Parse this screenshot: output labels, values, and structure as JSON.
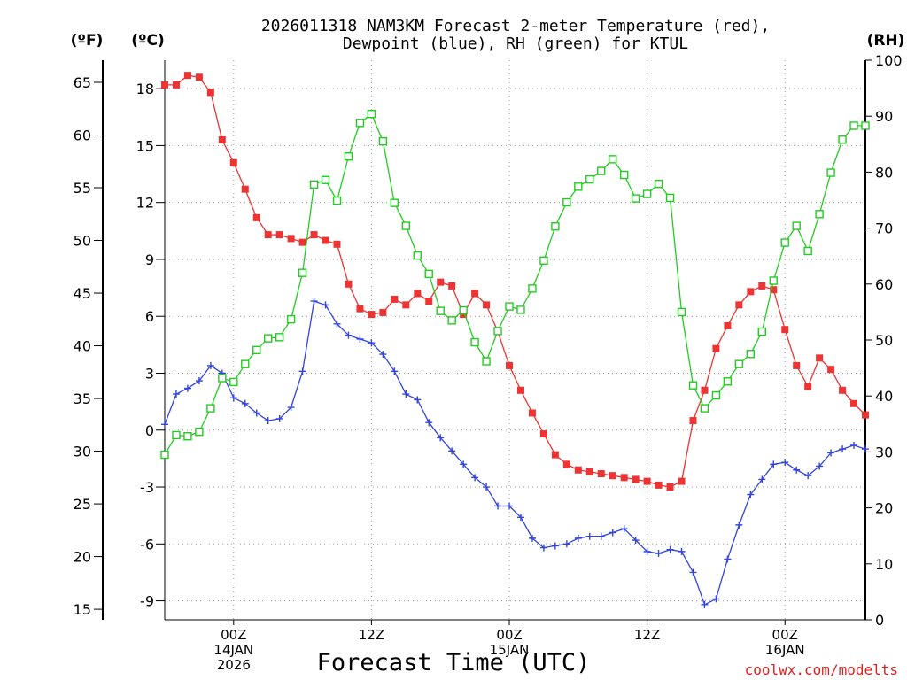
{
  "chart_data": {
    "type": "line",
    "title": [
      "2026011318 NAM3KM Forecast 2-meter Temperature (red),",
      "Dewpoint (blue), RH (green) for KTUL"
    ],
    "xlabel": "Forecast Time (UTC)",
    "credit": "coolwx.com/modelts",
    "units": {
      "fahrenheit": "(ºF)",
      "celsius": "(ºC)",
      "rh": "(RH)"
    },
    "x_range_hours": [
      0,
      61
    ],
    "x_ticks": [
      {
        "hour": 6,
        "lines": [
          "00Z",
          "14JAN",
          "2026"
        ]
      },
      {
        "hour": 18,
        "lines": [
          "12Z"
        ]
      },
      {
        "hour": 30,
        "lines": [
          "00Z",
          "15JAN"
        ]
      },
      {
        "hour": 42,
        "lines": [
          "12Z"
        ]
      },
      {
        "hour": 54,
        "lines": [
          "00Z",
          "16JAN"
        ]
      }
    ],
    "y_celsius": {
      "range": [
        -10.0,
        19.5
      ],
      "ticks": [
        18,
        15,
        12,
        9,
        6,
        3,
        0,
        -3,
        -6,
        -9
      ]
    },
    "y_fahrenheit": {
      "ticks": [
        65,
        60,
        55,
        50,
        45,
        40,
        35,
        30,
        25,
        20,
        15
      ]
    },
    "y_rh": {
      "range": [
        0,
        100
      ],
      "ticks": [
        100,
        90,
        80,
        70,
        60,
        50,
        40,
        30,
        20,
        10,
        0
      ]
    },
    "series": [
      {
        "name": "2-meter Temperature",
        "axis": "celsius",
        "color": "#ee3333",
        "marker": "filled-square",
        "x": [
          0,
          1,
          2,
          3,
          4,
          5,
          6,
          7,
          8,
          9,
          10,
          11,
          12,
          13,
          14,
          15,
          16,
          17,
          18,
          19,
          20,
          21,
          22,
          23,
          24,
          25,
          26,
          27,
          28,
          29,
          30,
          31,
          32,
          33,
          34,
          35,
          36,
          37,
          38,
          39,
          40,
          41,
          42,
          43,
          44,
          45,
          46,
          47,
          48,
          49,
          50,
          51,
          52,
          53,
          54,
          55,
          56,
          57,
          58,
          59,
          60,
          61
        ],
        "values": [
          18.2,
          18.2,
          18.7,
          18.6,
          17.8,
          15.3,
          14.1,
          12.7,
          11.2,
          10.3,
          10.3,
          10.1,
          9.9,
          10.3,
          10.0,
          9.8,
          7.7,
          6.4,
          6.1,
          6.2,
          6.9,
          6.6,
          7.2,
          6.8,
          7.8,
          7.6,
          6.1,
          7.2,
          6.6,
          5.2,
          3.4,
          2.1,
          0.9,
          -0.2,
          -1.3,
          -1.8,
          -2.1,
          -2.2,
          -2.3,
          -2.4,
          -2.5,
          -2.6,
          -2.7,
          -2.9,
          -3.0,
          -2.7,
          0.5,
          2.1,
          4.3,
          5.5,
          6.6,
          7.3,
          7.6,
          7.4,
          5.3,
          3.4,
          2.3,
          3.8,
          3.2,
          2.1,
          1.4,
          0.8
        ]
      },
      {
        "name": "Dewpoint",
        "axis": "celsius",
        "color": "#3344dd",
        "marker": "plus",
        "x": [
          0,
          1,
          2,
          3,
          4,
          5,
          6,
          7,
          8,
          9,
          10,
          11,
          12,
          13,
          14,
          15,
          16,
          17,
          18,
          19,
          20,
          21,
          22,
          23,
          24,
          25,
          26,
          27,
          28,
          29,
          30,
          31,
          32,
          33,
          34,
          35,
          36,
          37,
          38,
          39,
          40,
          41,
          42,
          43,
          44,
          45,
          46,
          47,
          48,
          49,
          50,
          51,
          52,
          53,
          54,
          55,
          56,
          57,
          58,
          59,
          60,
          61
        ],
        "values": [
          0.3,
          1.9,
          2.2,
          2.6,
          3.4,
          3.0,
          1.7,
          1.4,
          0.9,
          0.5,
          0.6,
          1.2,
          3.1,
          6.8,
          6.6,
          5.6,
          5.0,
          4.8,
          4.6,
          4.0,
          3.1,
          1.9,
          1.6,
          0.4,
          -0.4,
          -1.1,
          -1.8,
          -2.5,
          -3.0,
          -4.0,
          -4.0,
          -4.6,
          -5.7,
          -6.2,
          -6.1,
          -6.0,
          -5.7,
          -5.6,
          -5.6,
          -5.4,
          -5.2,
          -5.8,
          -6.4,
          -6.5,
          -6.3,
          -6.4,
          -7.5,
          -9.2,
          -8.9,
          -6.8,
          -5.0,
          -3.4,
          -2.6,
          -1.8,
          -1.7,
          -2.1,
          -2.4,
          -1.9,
          -1.2,
          -1.0,
          -0.8,
          -1.0
        ]
      },
      {
        "name": "RH",
        "axis": "rh",
        "color": "#22cc22",
        "marker": "open-square",
        "x": [
          0,
          1,
          2,
          3,
          4,
          5,
          6,
          7,
          8,
          9,
          10,
          11,
          12,
          13,
          14,
          15,
          16,
          17,
          18,
          19,
          20,
          21,
          22,
          23,
          24,
          25,
          26,
          27,
          28,
          29,
          30,
          31,
          32,
          33,
          34,
          35,
          36,
          37,
          38,
          39,
          40,
          41,
          42,
          43,
          44,
          45,
          46,
          47,
          48,
          49,
          50,
          51,
          52,
          53,
          54,
          55,
          56,
          57,
          58,
          59,
          60,
          61
        ],
        "values": [
          29.5,
          33.0,
          32.8,
          33.6,
          37.8,
          43.2,
          42.5,
          45.7,
          48.2,
          50.3,
          50.5,
          53.7,
          62.0,
          77.8,
          78.6,
          74.9,
          82.8,
          88.8,
          90.4,
          85.5,
          74.5,
          70.4,
          65.1,
          61.8,
          55.2,
          53.5,
          55.3,
          49.6,
          46.2,
          51.6,
          56.0,
          55.4,
          59.2,
          64.2,
          70.3,
          74.6,
          77.4,
          78.7,
          80.2,
          82.3,
          79.5,
          75.3,
          76.1,
          77.9,
          75.4,
          55.0,
          41.9,
          37.8,
          40.1,
          42.6,
          45.7,
          47.5,
          51.5,
          60.6,
          67.4,
          70.4,
          65.9,
          72.5,
          79.9,
          85.8,
          88.3,
          88.3
        ]
      }
    ]
  }
}
